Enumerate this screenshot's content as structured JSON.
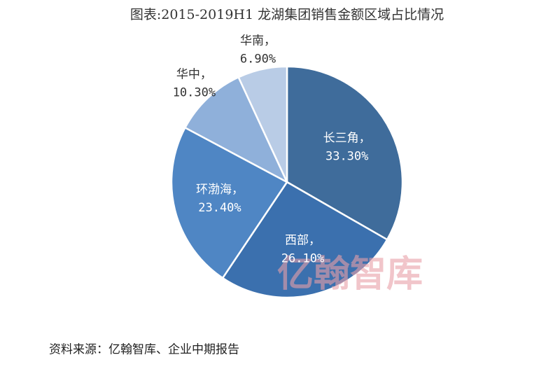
{
  "chart_data": {
    "type": "pie",
    "title": "图表:2015-2019H1 龙湖集团销售金额区域占比情况",
    "categories": [
      "长三角，",
      "西部，",
      "环渤海，",
      "华中，",
      "华南，"
    ],
    "values": [
      33.3,
      26.1,
      23.4,
      10.3,
      6.9
    ],
    "value_labels": [
      "33.30%",
      "26.10%",
      "23.40%",
      "10.30%",
      "6.90%"
    ],
    "colors": [
      "#3f6c9b",
      "#3b70ae",
      "#4f86c4",
      "#8fb0da",
      "#b9cce6"
    ],
    "source": "资料来源：亿翰智库、企业中期报告",
    "watermark": "亿翰智库"
  }
}
